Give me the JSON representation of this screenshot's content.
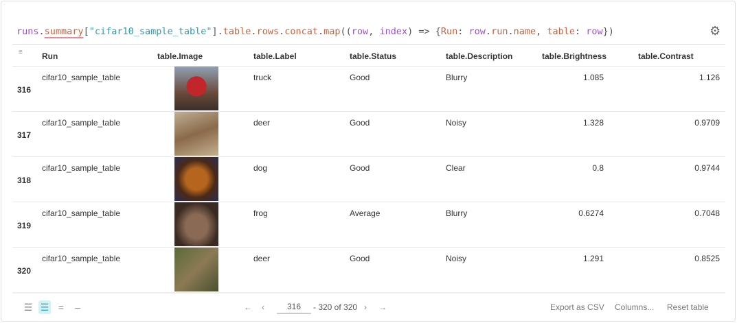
{
  "query": {
    "t1": "runs",
    "t2": ".",
    "t3": "summary",
    "t4": "[",
    "t5": "\"cifar10_sample_table\"",
    "t6": "].",
    "t7": "table",
    "t8": ".",
    "t9": "rows",
    "t10": ".",
    "t11": "concat",
    "t12": ".",
    "t13": "map",
    "t14": "((",
    "t15": "row",
    "t16": ", ",
    "t17": "index",
    "t18": ") => {",
    "t19": "Run",
    "t20": ": ",
    "t21": "row",
    "t22": ".",
    "t23": "run",
    "t24": ".",
    "t25": "name",
    "t26": ", ",
    "t27": "table",
    "t28": ": ",
    "t29": "row",
    "t30": "})"
  },
  "columns": [
    "Run",
    "table.Image",
    "table.Label",
    "table.Status",
    "table.Description",
    "table.Brightness",
    "table.Contrast"
  ],
  "rows": [
    {
      "idx": "316",
      "run": "cifar10_sample_table",
      "image": "truck",
      "label": "truck",
      "status": "Good",
      "desc": "Blurry",
      "bright": "1.085",
      "contrast": "1.126"
    },
    {
      "idx": "317",
      "run": "cifar10_sample_table",
      "image": "deer",
      "label": "deer",
      "status": "Good",
      "desc": "Noisy",
      "bright": "1.328",
      "contrast": "0.9709"
    },
    {
      "idx": "318",
      "run": "cifar10_sample_table",
      "image": "dog",
      "label": "dog",
      "status": "Good",
      "desc": "Clear",
      "bright": "0.8",
      "contrast": "0.9744"
    },
    {
      "idx": "319",
      "run": "cifar10_sample_table",
      "image": "frog",
      "label": "frog",
      "status": "Average",
      "desc": "Blurry",
      "bright": "0.6274",
      "contrast": "0.7048"
    },
    {
      "idx": "320",
      "run": "cifar10_sample_table",
      "image": "deer",
      "label": "deer",
      "status": "Good",
      "desc": "Noisy",
      "bright": "1.291",
      "contrast": "0.8525"
    }
  ],
  "pagination": {
    "page": "316",
    "range": "- 320 of 320"
  },
  "actions": {
    "export": "Export as CSV",
    "columns": "Columns...",
    "reset": "Reset table"
  },
  "icons": {
    "gear": "gear-icon",
    "filter": "filter-icon"
  }
}
